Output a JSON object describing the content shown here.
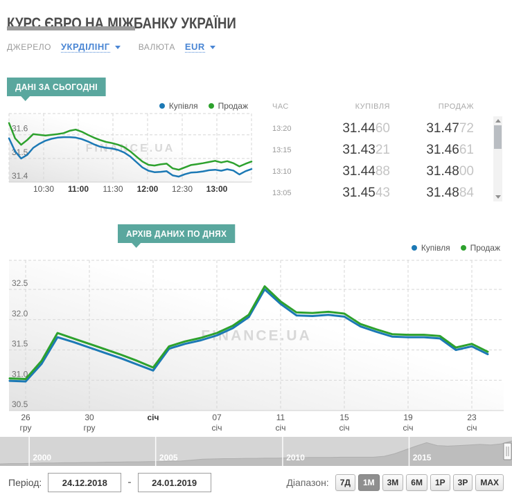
{
  "header": {
    "title": "КУРС ЄВРО НА МІЖБАНКУ УКРАЇНИ"
  },
  "controls": {
    "source_label": "ДЖЕРЕЛО",
    "source_value": "УКРДІЛІНГ",
    "currency_label": "ВАЛЮТА",
    "currency_value": "EUR"
  },
  "watermark": "FINANCE.UA",
  "legend": {
    "buy": "Купівля",
    "sell": "Продаж",
    "buy_color": "#1c79b5",
    "sell_color": "#2da12d"
  },
  "today": {
    "badge": "ДАНІ ЗА СЬОГОДНІ",
    "table": {
      "headers": [
        "ЧАС",
        "КУПІВЛЯ",
        "ПРОДАЖ"
      ],
      "rows": [
        {
          "time": "13:20",
          "buy": [
            "31.44",
            "60"
          ],
          "sell": [
            "31.47",
            "72"
          ]
        },
        {
          "time": "13:15",
          "buy": [
            "31.43",
            "21"
          ],
          "sell": [
            "31.46",
            "61"
          ]
        },
        {
          "time": "13:10",
          "buy": [
            "31.44",
            "88"
          ],
          "sell": [
            "31.48",
            "00"
          ]
        },
        {
          "time": "13:05",
          "buy": [
            "31.45",
            "43"
          ],
          "sell": [
            "31.48",
            "84"
          ]
        }
      ]
    }
  },
  "archive": {
    "badge": "АРХІВ ДАНИХ ПО ДНЯХ"
  },
  "bottom": {
    "period_label": "Період:",
    "date_from": "24.12.2018",
    "dash": "-",
    "date_to": "24.01.2019",
    "range_label": "Діапазон:",
    "range_buttons": [
      "7Д",
      "1М",
      "3М",
      "6М",
      "1Р",
      "3Р",
      "MAX"
    ],
    "active_range": "1М"
  },
  "chart_data": [
    {
      "id": "intraday",
      "type": "line",
      "title": "ДАНІ ЗА СЬОГОДНІ",
      "x": [
        "10:05",
        "10:10",
        "10:15",
        "10:20",
        "10:25",
        "10:30",
        "10:35",
        "10:40",
        "10:45",
        "10:50",
        "10:55",
        "11:00",
        "11:05",
        "11:10",
        "11:15",
        "11:20",
        "11:25",
        "11:30",
        "11:35",
        "11:40",
        "11:45",
        "11:50",
        "11:55",
        "12:00",
        "12:05",
        "12:10",
        "12:15",
        "12:20",
        "12:25",
        "12:30",
        "12:35",
        "12:40",
        "12:45",
        "12:50",
        "12:55",
        "13:00",
        "13:05",
        "13:10",
        "13:15",
        "13:20",
        "13:25"
      ],
      "xticks": [
        {
          "label": ""
        },
        {
          "label": "10:30"
        },
        {
          "label": "11:00",
          "bold": true
        },
        {
          "label": "11:30"
        },
        {
          "label": "12:00",
          "bold": true
        },
        {
          "label": "12:30"
        },
        {
          "label": "13:00",
          "bold": true
        },
        {
          "label": ""
        }
      ],
      "yticks": [
        31.4,
        31.5,
        31.6
      ],
      "ylim": [
        31.4,
        31.69
      ],
      "grid": "dashed",
      "legend_position": "top-right",
      "series": [
        {
          "name": "Купівля",
          "color": "#1c79b5",
          "values": [
            31.585,
            31.53,
            31.5,
            31.515,
            31.545,
            31.562,
            31.575,
            31.583,
            31.588,
            31.59,
            31.59,
            31.588,
            31.582,
            31.572,
            31.56,
            31.55,
            31.545,
            31.542,
            31.536,
            31.525,
            31.508,
            31.485,
            31.462,
            31.448,
            31.442,
            31.443,
            31.446,
            31.428,
            31.423,
            31.433,
            31.44,
            31.442,
            31.445,
            31.45,
            31.452,
            31.448,
            31.4543,
            31.4488,
            31.4321,
            31.446,
            31.455
          ]
        },
        {
          "name": "Продаж",
          "color": "#2da12d",
          "values": [
            31.65,
            31.585,
            31.558,
            31.578,
            31.603,
            31.6,
            31.597,
            31.6,
            31.603,
            31.607,
            31.617,
            31.622,
            31.613,
            31.6,
            31.588,
            31.578,
            31.57,
            31.565,
            31.558,
            31.548,
            31.53,
            31.508,
            31.487,
            31.473,
            31.47,
            31.475,
            31.478,
            31.458,
            31.452,
            31.462,
            31.472,
            31.476,
            31.48,
            31.485,
            31.49,
            31.483,
            31.4884,
            31.48,
            31.4661,
            31.4772,
            31.487
          ]
        }
      ]
    },
    {
      "id": "archive",
      "type": "line",
      "title": "АРХІВ ДАНИХ ПО ДНЯХ",
      "x": [
        "25.12",
        "26.12",
        "27.12",
        "28.12",
        "29.12",
        "30.12",
        "31.12",
        "01.01",
        "02.01",
        "03.01",
        "04.01",
        "05.01",
        "06.01",
        "07.01",
        "08.01",
        "09.01",
        "10.01",
        "11.01",
        "12.01",
        "13.01",
        "14.01",
        "15.01",
        "16.01",
        "17.01",
        "18.01",
        "19.01",
        "20.01",
        "21.01",
        "22.01",
        "23.01",
        "24.01"
      ],
      "xticks": [
        {
          "label": "26",
          "sub": "гру"
        },
        {
          "label": "30",
          "sub": "гру"
        },
        {
          "label": "січ",
          "bold": true
        },
        {
          "label": "07",
          "sub": "січ"
        },
        {
          "label": "11",
          "sub": "січ"
        },
        {
          "label": "15",
          "sub": "січ"
        },
        {
          "label": "19",
          "sub": "січ"
        },
        {
          "label": "23",
          "sub": "січ"
        }
      ],
      "yticks": [
        30.5,
        31.0,
        31.5,
        32.0,
        32.5
      ],
      "ylim": [
        30.5,
        32.98
      ],
      "grid": "dashed",
      "legend_position": "top-right",
      "series": [
        {
          "name": "Купівля",
          "color": "#1c79b5",
          "values": [
            30.99,
            30.98,
            31.27,
            31.71,
            31.63,
            31.54,
            31.45,
            31.36,
            31.26,
            31.16,
            31.52,
            31.6,
            31.66,
            31.74,
            31.86,
            32.04,
            32.5,
            32.26,
            32.07,
            32.06,
            32.08,
            32.05,
            31.89,
            31.8,
            31.72,
            31.71,
            31.71,
            31.69,
            31.5,
            31.56,
            31.43
          ]
        },
        {
          "name": "Продаж",
          "color": "#2da12d",
          "values": [
            31.03,
            31.02,
            31.32,
            31.78,
            31.69,
            31.6,
            31.51,
            31.42,
            31.32,
            31.21,
            31.56,
            31.64,
            31.7,
            31.78,
            31.9,
            32.08,
            32.55,
            32.3,
            32.12,
            32.11,
            32.13,
            32.1,
            31.93,
            31.84,
            31.76,
            31.75,
            31.75,
            31.73,
            31.54,
            31.6,
            31.47
          ]
        }
      ]
    },
    {
      "id": "navigator",
      "type": "area",
      "title": "Повна історія (навігатор)",
      "years": [
        {
          "label": "2000",
          "pos": 0.056
        },
        {
          "label": "2005",
          "pos": 0.303
        },
        {
          "label": "2010",
          "pos": 0.551
        },
        {
          "label": "2015",
          "pos": 0.798
        }
      ],
      "values": [
        0.07,
        0.08,
        0.08,
        0.09,
        0.1,
        0.1,
        0.11,
        0.11,
        0.12,
        0.12,
        0.13,
        0.13,
        0.14,
        0.14,
        0.15,
        0.15,
        0.16,
        0.17,
        0.2,
        0.23,
        0.24,
        0.25,
        0.25,
        0.26,
        0.26,
        0.27,
        0.27,
        0.28,
        0.28,
        0.29,
        0.29,
        0.29,
        0.3,
        0.3,
        0.3,
        0.3,
        0.33,
        0.42,
        0.55,
        0.68,
        0.8,
        0.7,
        0.68,
        0.7,
        0.72,
        0.74,
        0.72,
        0.76,
        0.86
      ]
    }
  ]
}
